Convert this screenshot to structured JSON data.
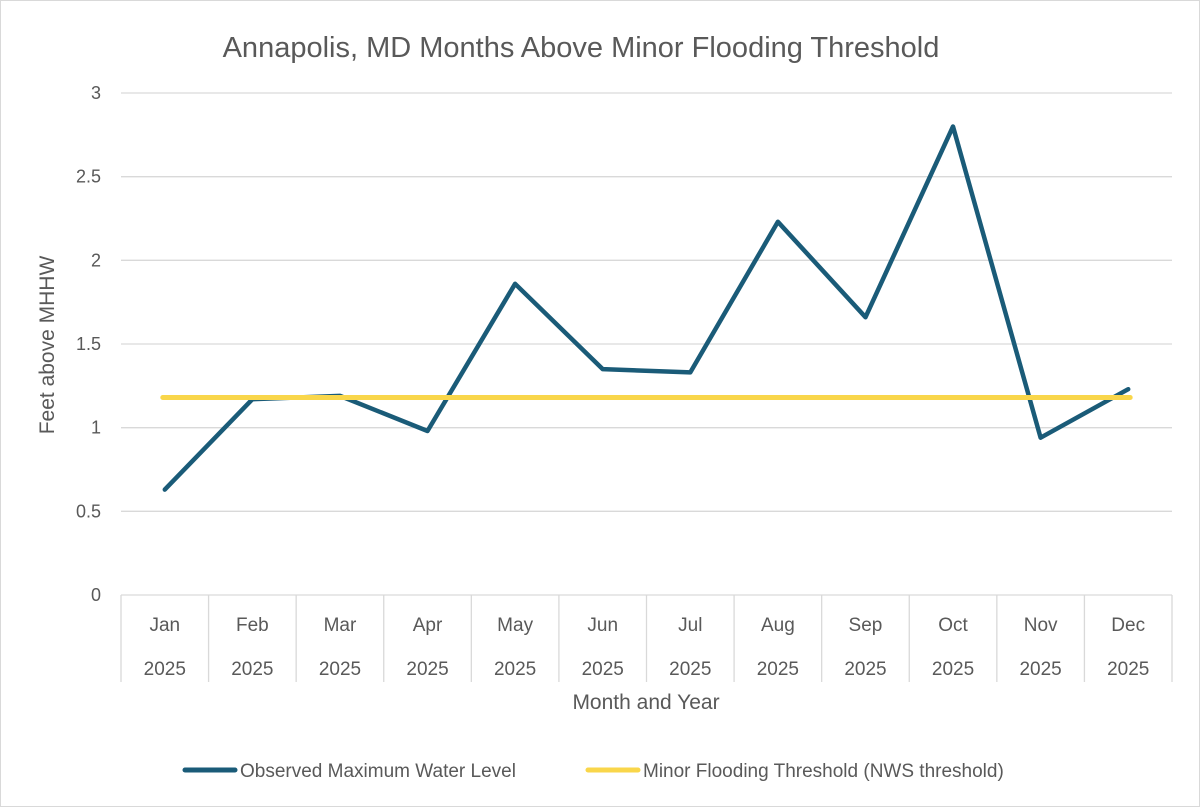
{
  "chart_data": {
    "type": "line",
    "title": "Annapolis, MD Months Above Minor Flooding Threshold",
    "xlabel": "Month and Year",
    "ylabel": "Feet above MHHW",
    "ylim": [
      0,
      3
    ],
    "yticks": [
      0,
      0.5,
      1,
      1.5,
      2,
      2.5,
      3
    ],
    "ytick_labels": [
      "0",
      "0.5",
      "1",
      "1.5",
      "2",
      "2.5",
      "3"
    ],
    "grid": true,
    "legend_position": "bottom",
    "categories": [
      {
        "month": "Jan",
        "year": "2025"
      },
      {
        "month": "Feb",
        "year": "2025"
      },
      {
        "month": "Mar",
        "year": "2025"
      },
      {
        "month": "Apr",
        "year": "2025"
      },
      {
        "month": "May",
        "year": "2025"
      },
      {
        "month": "Jun",
        "year": "2025"
      },
      {
        "month": "Jul",
        "year": "2025"
      },
      {
        "month": "Aug",
        "year": "2025"
      },
      {
        "month": "Sep",
        "year": "2025"
      },
      {
        "month": "Oct",
        "year": "2025"
      },
      {
        "month": "Nov",
        "year": "2025"
      },
      {
        "month": "Dec",
        "year": "2025"
      }
    ],
    "series": [
      {
        "name": "Observed Maximum Water Level",
        "color": "#1a5b78",
        "values": [
          0.63,
          1.17,
          1.19,
          0.98,
          1.86,
          1.35,
          1.33,
          2.23,
          1.66,
          2.8,
          0.94,
          1.23
        ]
      },
      {
        "name": "Minor Flooding Threshold (NWS threshold)",
        "color": "#f9d64a",
        "values": [
          1.18,
          1.18,
          1.18,
          1.18,
          1.18,
          1.18,
          1.18,
          1.18,
          1.18,
          1.18,
          1.18,
          1.18
        ]
      }
    ]
  }
}
